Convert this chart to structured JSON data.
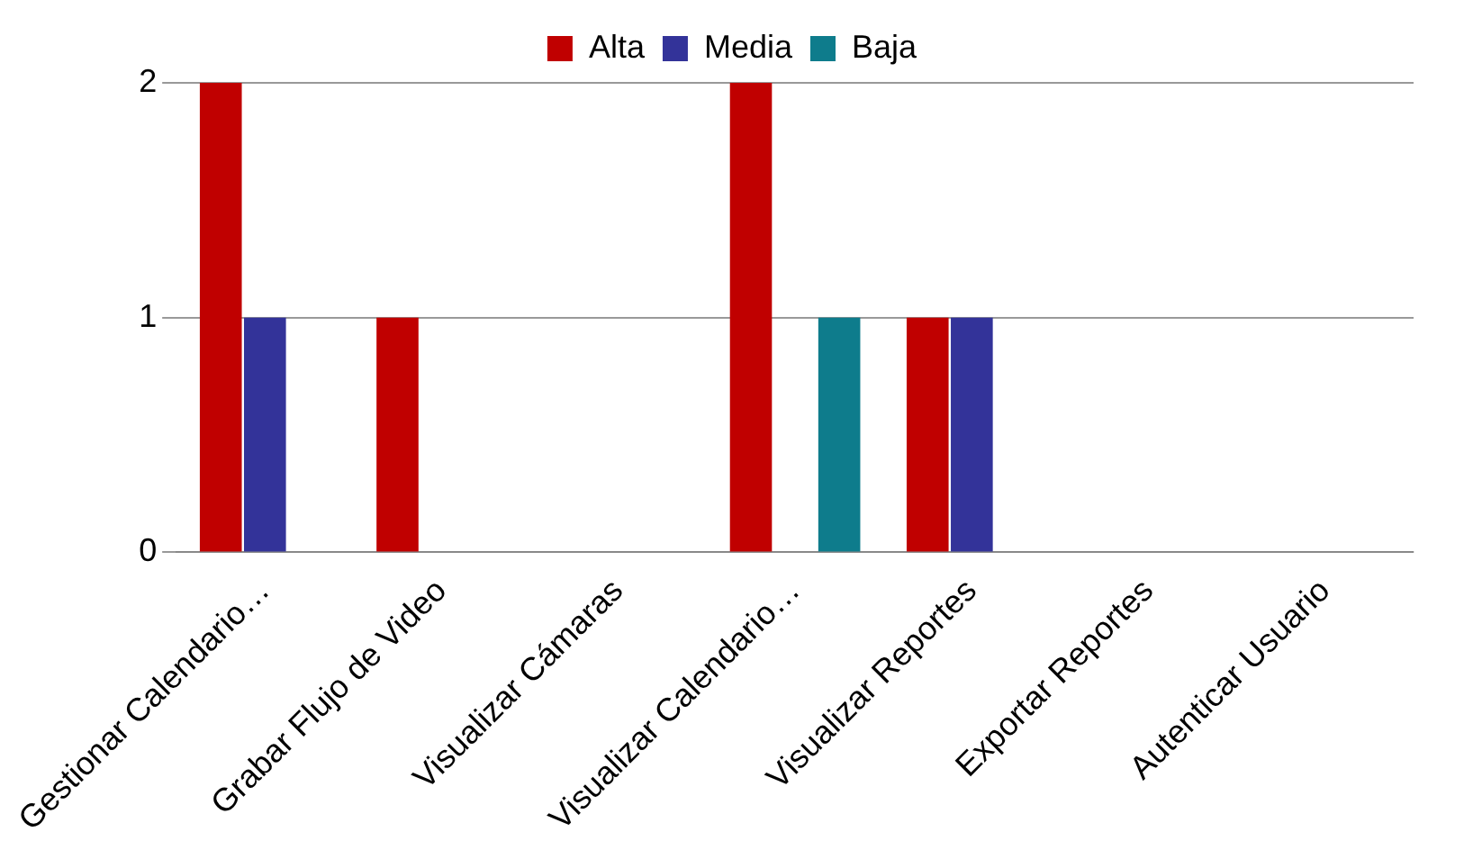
{
  "chart_data": {
    "type": "bar",
    "categories": [
      "Gestionar Calendario…",
      "Grabar Flujo de Video",
      "Visualizar Cámaras",
      "Visualizar Calendario…",
      "Visualizar Reportes",
      "Exportar Reportes",
      "Autenticar Usuario"
    ],
    "series": [
      {
        "name": "Alta",
        "color": "#c00000",
        "values": [
          2,
          1,
          0,
          2,
          1,
          0,
          0
        ]
      },
      {
        "name": "Media",
        "color": "#333399",
        "values": [
          1,
          0,
          0,
          0,
          1,
          0,
          0
        ]
      },
      {
        "name": "Baja",
        "color": "#0e7c8c",
        "values": [
          0,
          0,
          0,
          1,
          0,
          0,
          0
        ]
      }
    ],
    "ylim": [
      0,
      2
    ],
    "yticks": [
      0,
      1,
      2
    ],
    "grid": "y",
    "legend": "top"
  }
}
